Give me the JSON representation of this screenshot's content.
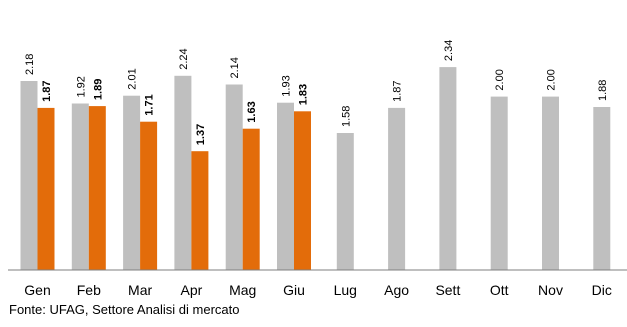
{
  "chart_data": {
    "type": "bar",
    "categories": [
      "Gen",
      "Feb",
      "Mar",
      "Apr",
      "Mag",
      "Giu",
      "Lug",
      "Ago",
      "Sett",
      "Ott",
      "Nov",
      "Dic"
    ],
    "series": [
      {
        "values": [
          2.18,
          1.92,
          2.01,
          2.24,
          2.14,
          1.93,
          1.58,
          1.87,
          2.34,
          2.0,
          2.0,
          1.88
        ],
        "labels": [
          "2.18",
          "1.92",
          "2.01",
          "2.24",
          "2.14",
          "1.93",
          "1.58",
          "1.87",
          "2.34",
          "2.00",
          "2.00",
          "1.88"
        ],
        "color": "#BFBFBF",
        "label_bold": false
      },
      {
        "values": [
          1.87,
          1.89,
          1.71,
          1.37,
          1.63,
          1.83,
          null,
          null,
          null,
          null,
          null,
          null
        ],
        "labels": [
          "1.87",
          "1.89",
          "1.71",
          "1.37",
          "1.63",
          "1.83",
          "",
          "",
          "",
          "",
          "",
          ""
        ],
        "color": "#E36C0A",
        "label_bold": true
      }
    ],
    "ylim": [
      0,
      2.6
    ],
    "grid": false,
    "legend": "none",
    "source": "Fonte: UFAG, Settore Analisi di mercato"
  }
}
